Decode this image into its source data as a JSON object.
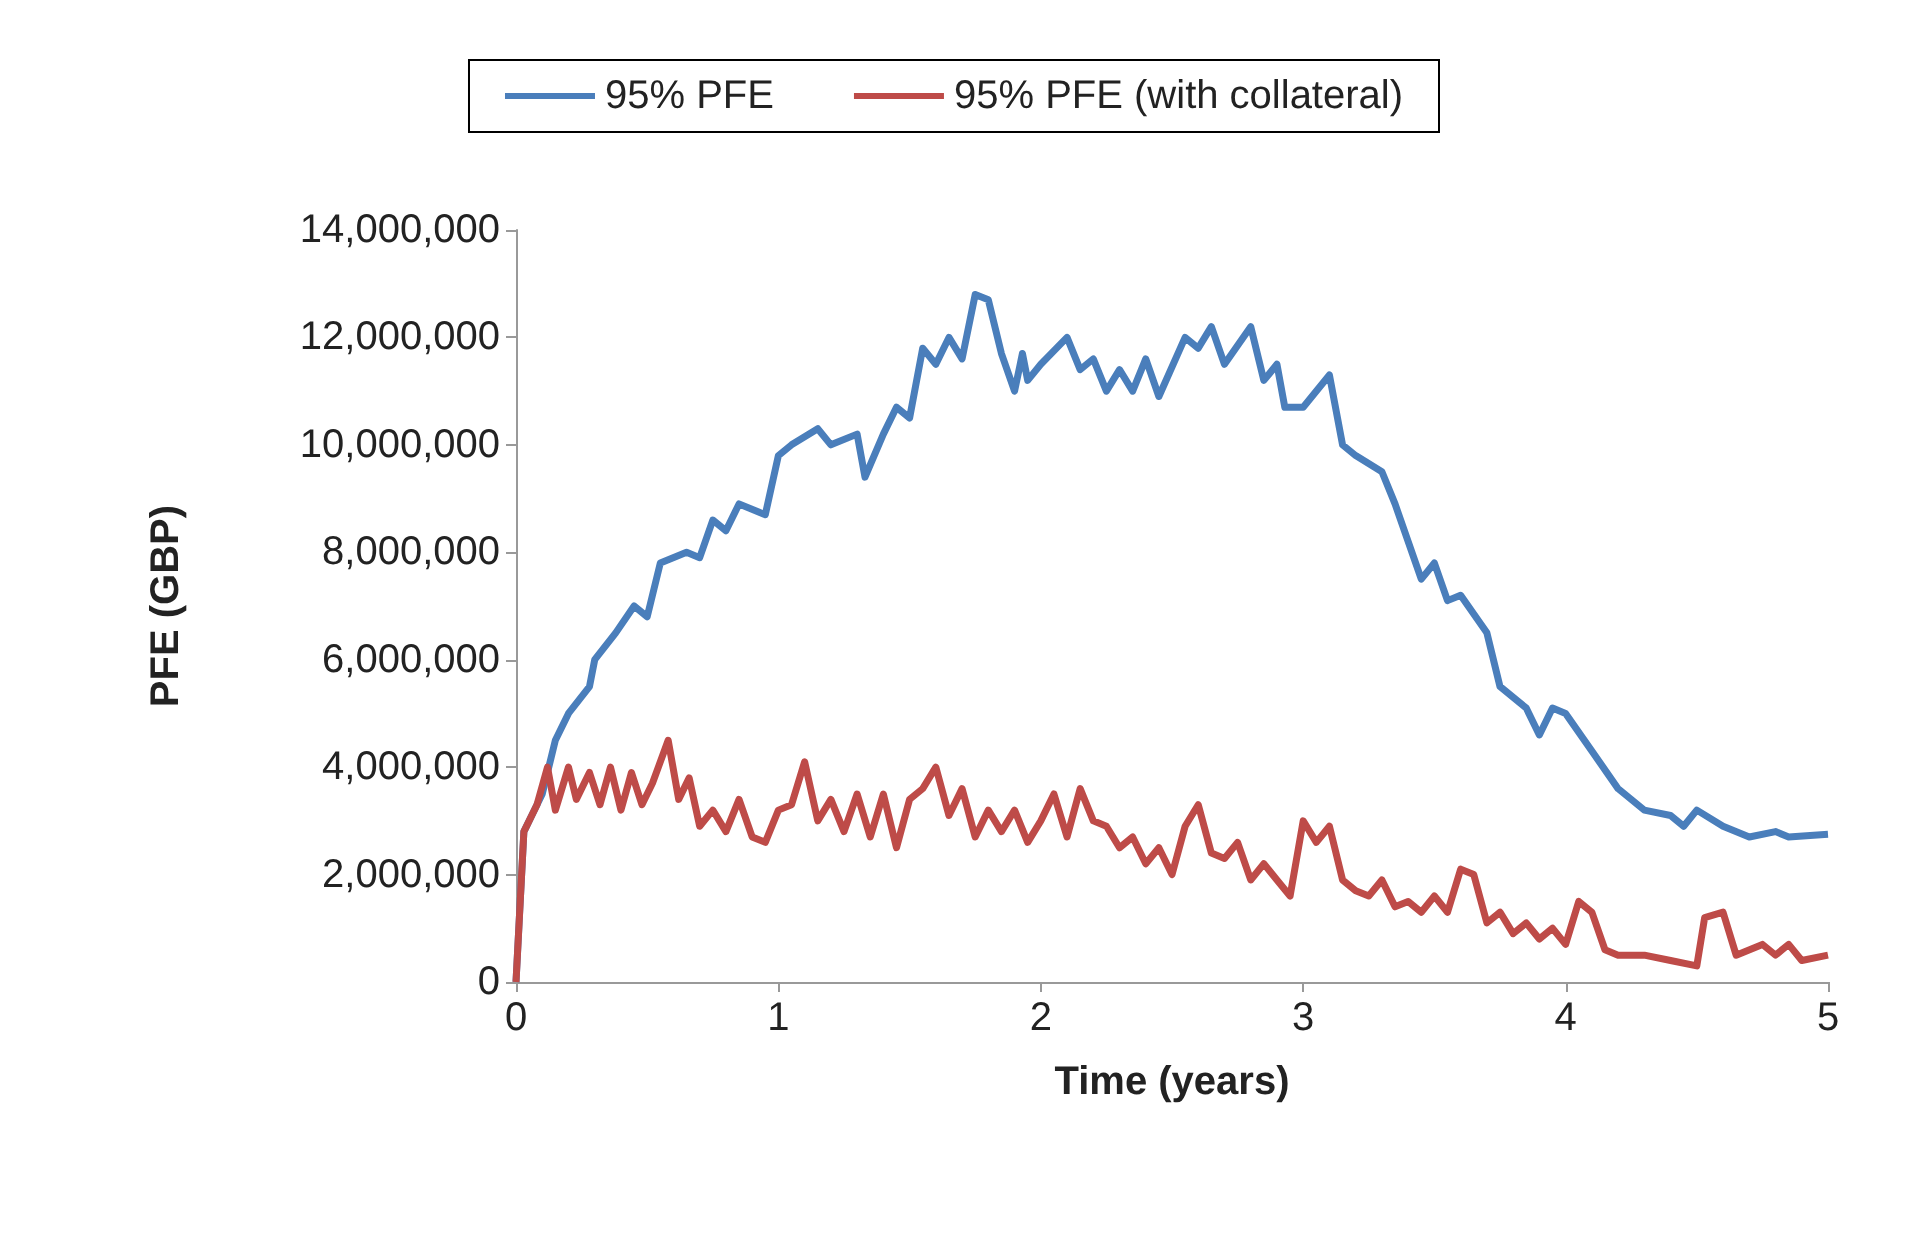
{
  "chart_data": {
    "type": "line",
    "xlabel": "Time (years)",
    "ylabel": "PFE (GBP)",
    "xlim": [
      0,
      5
    ],
    "xticks": [
      0,
      1,
      2,
      3,
      4,
      5
    ],
    "ylim": [
      0,
      14000000
    ],
    "yticks": [
      {
        "value": 0,
        "label": "0"
      },
      {
        "value": 2000000,
        "label": "2,000,000"
      },
      {
        "value": 4000000,
        "label": "4,000,000"
      },
      {
        "value": 6000000,
        "label": "6,000,000"
      },
      {
        "value": 8000000,
        "label": "8,000,000"
      },
      {
        "value": 10000000,
        "label": "10,000,000"
      },
      {
        "value": 12000000,
        "label": "12,000,000"
      },
      {
        "value": 14000000,
        "label": "14,000,000"
      }
    ],
    "grid": false,
    "legend": "top",
    "marker": "none",
    "line_style": "solid",
    "series": [
      {
        "name": "95% PFE",
        "color": "#4a7ebb",
        "x": [
          0,
          0.03,
          0.08,
          0.1,
          0.15,
          0.2,
          0.28,
          0.3,
          0.38,
          0.45,
          0.5,
          0.55,
          0.65,
          0.7,
          0.75,
          0.8,
          0.85,
          0.95,
          1,
          1.05,
          1.15,
          1.2,
          1.3,
          1.33,
          1.4,
          1.45,
          1.5,
          1.55,
          1.6,
          1.65,
          1.7,
          1.75,
          1.8,
          1.85,
          1.9,
          1.93,
          1.95,
          2,
          2.1,
          2.15,
          2.2,
          2.25,
          2.3,
          2.35,
          2.4,
          2.45,
          2.55,
          2.6,
          2.65,
          2.7,
          2.8,
          2.85,
          2.9,
          2.93,
          3,
          3.1,
          3.15,
          3.2,
          3.3,
          3.35,
          3.45,
          3.5,
          3.55,
          3.6,
          3.7,
          3.75,
          3.85,
          3.9,
          3.95,
          4,
          4.1,
          4.2,
          4.3,
          4.4,
          4.45,
          4.5,
          4.6,
          4.7,
          4.8,
          4.85,
          5
        ],
        "values": [
          0,
          2800000,
          3300000,
          3500000,
          4500000,
          5000000,
          5500000,
          6000000,
          6500000,
          7000000,
          6800000,
          7800000,
          8000000,
          7900000,
          8600000,
          8400000,
          8900000,
          8700000,
          9800000,
          10000000,
          10300000,
          10000000,
          10200000,
          9400000,
          10200000,
          10700000,
          10500000,
          11800000,
          11500000,
          12000000,
          11600000,
          12800000,
          12700000,
          11700000,
          11000000,
          11700000,
          11200000,
          11500000,
          12000000,
          11400000,
          11600000,
          11000000,
          11400000,
          11000000,
          11600000,
          10900000,
          12000000,
          11800000,
          12200000,
          11500000,
          12200000,
          11200000,
          11500000,
          10700000,
          10700000,
          11300000,
          10000000,
          9800000,
          9500000,
          8900000,
          7500000,
          7800000,
          7100000,
          7200000,
          6500000,
          5500000,
          5100000,
          4600000,
          5100000,
          5000000,
          4300000,
          3600000,
          3200000,
          3100000,
          2900000,
          3200000,
          2900000,
          2700000,
          2800000,
          2700000,
          2750000
        ]
      },
      {
        "name": "95% PFE (with collateral)",
        "color": "#be4b48",
        "x": [
          0,
          0.03,
          0.08,
          0.12,
          0.15,
          0.2,
          0.23,
          0.28,
          0.32,
          0.36,
          0.4,
          0.44,
          0.48,
          0.52,
          0.58,
          0.62,
          0.66,
          0.7,
          0.75,
          0.8,
          0.85,
          0.9,
          0.95,
          1,
          1.05,
          1.1,
          1.15,
          1.2,
          1.25,
          1.3,
          1.35,
          1.4,
          1.45,
          1.5,
          1.55,
          1.6,
          1.65,
          1.7,
          1.75,
          1.8,
          1.85,
          1.9,
          1.95,
          2,
          2.05,
          2.1,
          2.15,
          2.2,
          2.25,
          2.3,
          2.35,
          2.4,
          2.45,
          2.5,
          2.55,
          2.6,
          2.65,
          2.7,
          2.75,
          2.8,
          2.85,
          2.9,
          2.95,
          3,
          3.05,
          3.1,
          3.15,
          3.2,
          3.25,
          3.3,
          3.35,
          3.4,
          3.45,
          3.5,
          3.55,
          3.6,
          3.65,
          3.7,
          3.75,
          3.8,
          3.85,
          3.9,
          3.95,
          4,
          4.05,
          4.1,
          4.15,
          4.2,
          4.3,
          4.4,
          4.5,
          4.53,
          4.6,
          4.65,
          4.75,
          4.8,
          4.85,
          4.9,
          5
        ],
        "values": [
          0,
          2800000,
          3300000,
          4000000,
          3200000,
          4000000,
          3400000,
          3900000,
          3300000,
          4000000,
          3200000,
          3900000,
          3300000,
          3700000,
          4500000,
          3400000,
          3800000,
          2900000,
          3200000,
          2800000,
          3400000,
          2700000,
          2600000,
          3200000,
          3300000,
          4100000,
          3000000,
          3400000,
          2800000,
          3500000,
          2700000,
          3500000,
          2500000,
          3400000,
          3600000,
          4000000,
          3100000,
          3600000,
          2700000,
          3200000,
          2800000,
          3200000,
          2600000,
          3000000,
          3500000,
          2700000,
          3600000,
          3000000,
          2900000,
          2500000,
          2700000,
          2200000,
          2500000,
          2000000,
          2900000,
          3300000,
          2400000,
          2300000,
          2600000,
          1900000,
          2200000,
          1900000,
          1600000,
          3000000,
          2600000,
          2900000,
          1900000,
          1700000,
          1600000,
          1900000,
          1400000,
          1500000,
          1300000,
          1600000,
          1300000,
          2100000,
          2000000,
          1100000,
          1300000,
          900000,
          1100000,
          800000,
          1000000,
          700000,
          1500000,
          1300000,
          600000,
          500000,
          500000,
          400000,
          300000,
          1200000,
          1300000,
          500000,
          700000,
          500000,
          700000,
          400000,
          500000
        ]
      }
    ]
  }
}
